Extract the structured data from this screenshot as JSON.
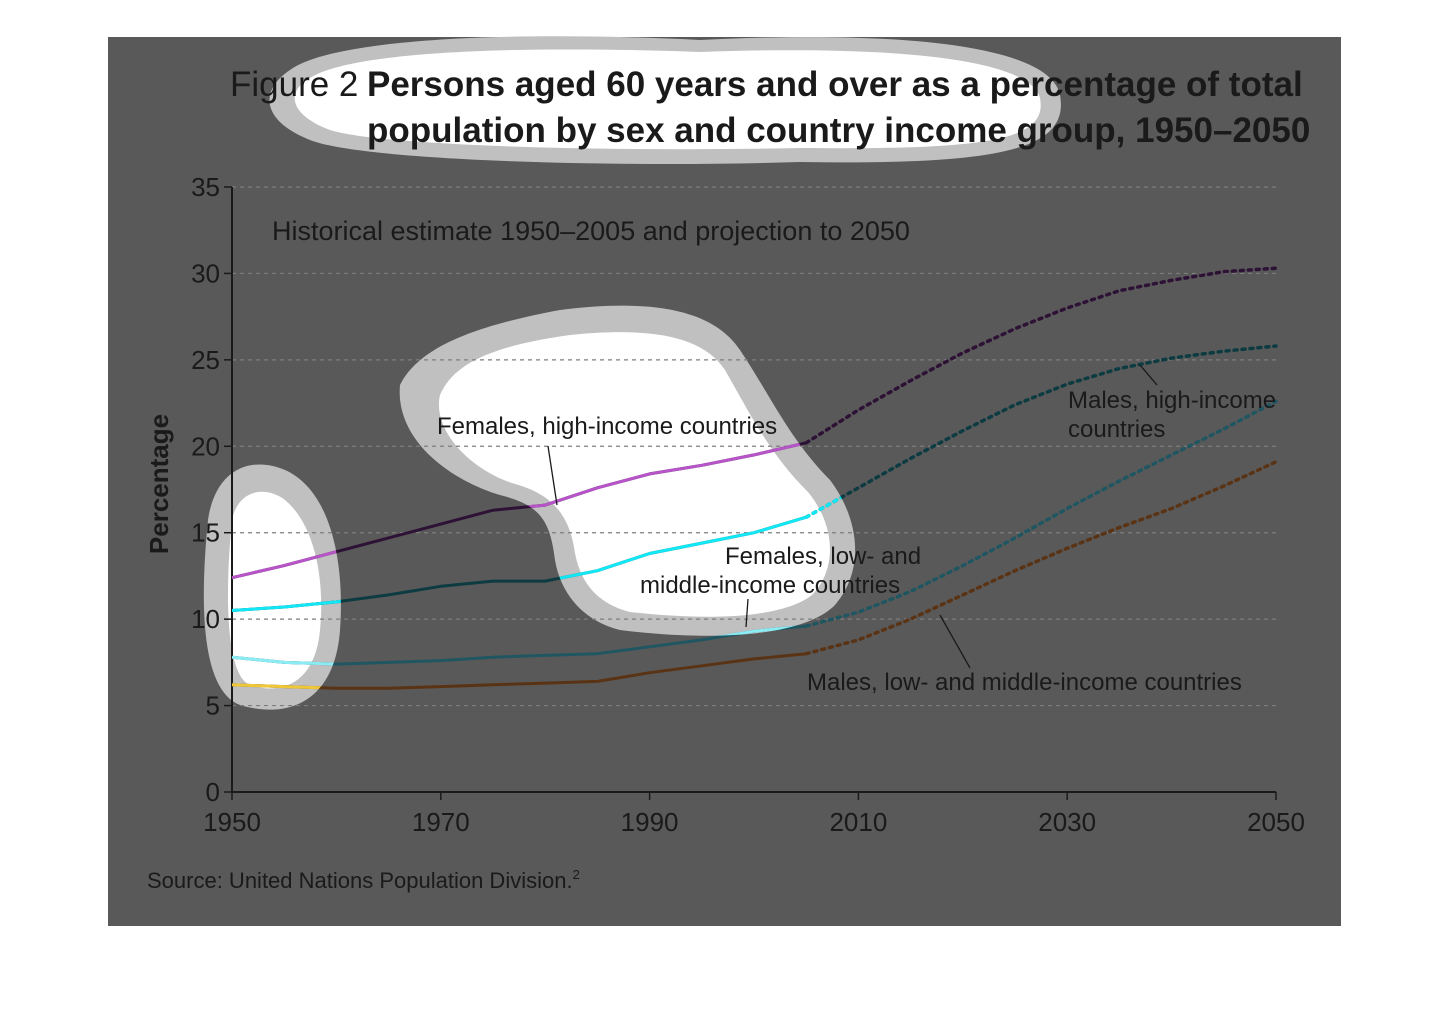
{
  "figure": {
    "number_label": "Figure 2",
    "title_line1": "Persons aged 60 years and over as a percentage of total",
    "title_line2": "population by sex and country income group, 1950–2050",
    "subtitle": "Historical estimate 1950–2005 and projection to 2050",
    "source": "Source: United Nations Population Division.",
    "source_note": "2"
  },
  "chart_data": {
    "type": "line",
    "title": "Persons aged 60 years and over as a percentage of total population by sex and country income group, 1950–2050",
    "subtitle": "Historical estimate 1950–2005 and projection to 2050",
    "xlabel": "",
    "ylabel": "Percentage",
    "xlim": [
      1950,
      2050
    ],
    "ylim": [
      0,
      35
    ],
    "xticks": [
      1950,
      1970,
      1990,
      2010,
      2030,
      2050
    ],
    "yticks": [
      0,
      5,
      10,
      15,
      20,
      25,
      30,
      35
    ],
    "grid": "horizontal dashed",
    "historical_end": 2005,
    "style_note": "solid 1950–2005, dotted projection 2005–2050",
    "x": [
      1950,
      1955,
      1960,
      1965,
      1970,
      1975,
      1980,
      1985,
      1990,
      1995,
      2000,
      2005,
      2010,
      2015,
      2020,
      2025,
      2030,
      2035,
      2040,
      2045,
      2050
    ],
    "series": [
      {
        "name": "Females, high-income countries",
        "color": "#2e1236",
        "highlight_color": "#b654c8",
        "values": [
          12.4,
          13.1,
          13.9,
          14.7,
          15.5,
          16.3,
          16.6,
          17.6,
          18.4,
          18.9,
          19.5,
          20.2,
          22.1,
          23.8,
          25.4,
          26.8,
          28.0,
          29.0,
          29.6,
          30.1,
          30.3
        ]
      },
      {
        "name": "Males, high-income countries",
        "color": "#0d3b42",
        "highlight_color": "#12e8f5",
        "values": [
          10.5,
          10.7,
          11.0,
          11.4,
          11.9,
          12.2,
          12.2,
          12.8,
          13.8,
          14.4,
          15.0,
          15.9,
          17.6,
          19.3,
          20.9,
          22.4,
          23.6,
          24.5,
          25.1,
          25.5,
          25.8
        ]
      },
      {
        "name": "Females, low- and middle-income countries",
        "color": "#1f5661",
        "highlight_color": "#8cecf4",
        "values": [
          7.8,
          7.5,
          7.4,
          7.5,
          7.6,
          7.8,
          7.9,
          8.0,
          8.4,
          8.8,
          9.3,
          9.6,
          10.4,
          11.6,
          13.1,
          14.7,
          16.4,
          18.0,
          19.5,
          21.0,
          22.6
        ]
      },
      {
        "name": "Males, low- and middle-income countries",
        "color": "#5a3314",
        "highlight_color": "#efc83a",
        "values": [
          6.2,
          6.1,
          6.0,
          6.0,
          6.1,
          6.2,
          6.3,
          6.4,
          6.9,
          7.3,
          7.7,
          8.0,
          8.8,
          10.0,
          11.4,
          12.8,
          14.1,
          15.3,
          16.4,
          17.7,
          19.1
        ]
      }
    ]
  },
  "labels": {
    "females_high": "Females, high-income countries",
    "males_high_1": "Males, high-income",
    "males_high_2": "countries",
    "females_low_1": "Females, low- and",
    "females_low_2": "middle-income countries",
    "males_low": "Males, low- and middle-income countries"
  }
}
